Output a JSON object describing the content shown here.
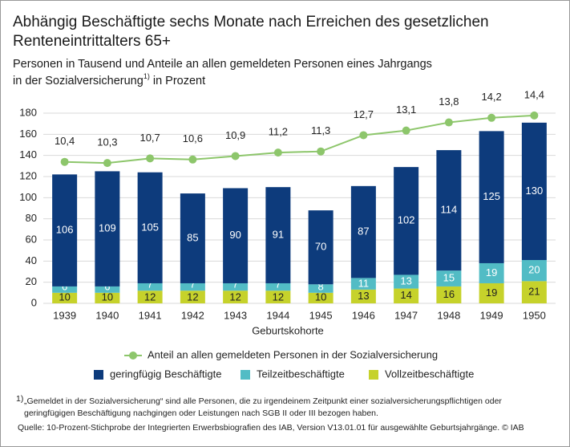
{
  "chart_data": {
    "type": "bar",
    "title_lines": [
      "Abhängig Beschäftigte sechs Monate nach Erreichen des gesetzlichen",
      "Renteneintrittalters 65+"
    ],
    "subtitle_lines": [
      "Personen in Tausend und Anteile an allen gemeldeten Personen eines Jahrgangs",
      "in der Sozialversicherung"
    ],
    "subtitle_marker": "1)",
    "subtitle_end": " in Prozent",
    "x_label": "Geburtskohorte",
    "categories": [
      "1939",
      "1940",
      "1941",
      "1942",
      "1943",
      "1944",
      "1945",
      "1946",
      "1947",
      "1948",
      "1949",
      "1950"
    ],
    "stacked": true,
    "series": [
      {
        "name": "Vollzeitbeschäftigte",
        "color": "#c6d22b",
        "label_color": "#222222",
        "values": [
          10,
          10,
          12,
          12,
          12,
          12,
          10,
          13,
          14,
          16,
          19,
          21
        ]
      },
      {
        "name": "Teilzeitbeschäftigte",
        "color": "#52bcc5",
        "label_color": "#ffffff",
        "values": [
          6,
          6,
          7,
          7,
          7,
          7,
          8,
          11,
          13,
          15,
          19,
          20
        ]
      },
      {
        "name": "geringfügig Beschäftigte",
        "color": "#0d3b7c",
        "label_color": "#ffffff",
        "values": [
          106,
          109,
          105,
          85,
          90,
          91,
          70,
          87,
          102,
          114,
          125,
          130
        ]
      },
      {
        "name": "Anteil an allen gemeldeten Personen in der Sozialversicherung",
        "type": "line",
        "axis": "y2",
        "color": "#8dc66b",
        "values": [
          10.4,
          10.3,
          10.7,
          10.6,
          10.9,
          11.2,
          11.3,
          12.7,
          13.1,
          13.8,
          14.2,
          14.4
        ],
        "value_labels": [
          "10,4",
          "10,3",
          "10,7",
          "10,6",
          "10,9",
          "11,2",
          "11,3",
          "12,7",
          "13,1",
          "13,8",
          "14,2",
          "14,4"
        ]
      }
    ],
    "ylim": [
      0,
      180
    ],
    "yticks": [
      0,
      20,
      40,
      60,
      80,
      100,
      120,
      140,
      160,
      180
    ],
    "y2lim": [
      -1.8,
      14.6
    ],
    "grid": true,
    "footnote_marker": "1)",
    "footnote_lines": [
      "„Gemeldet in der Sozialversicherung“ sind alle Personen, die zu irgendeinem Zeitpunkt einer sozialversicherungspflichtigen oder",
      "geringfügigen Beschäftigung nachgingen oder Leistungen nach SGB II oder III bezogen haben."
    ],
    "source": "Quelle: 10-Prozent-Stichprobe der Integrierten Erwerbsbiografien des IAB, Version V13.01.01 für ausgewählte Geburtsjahrgänge.  © IAB"
  }
}
